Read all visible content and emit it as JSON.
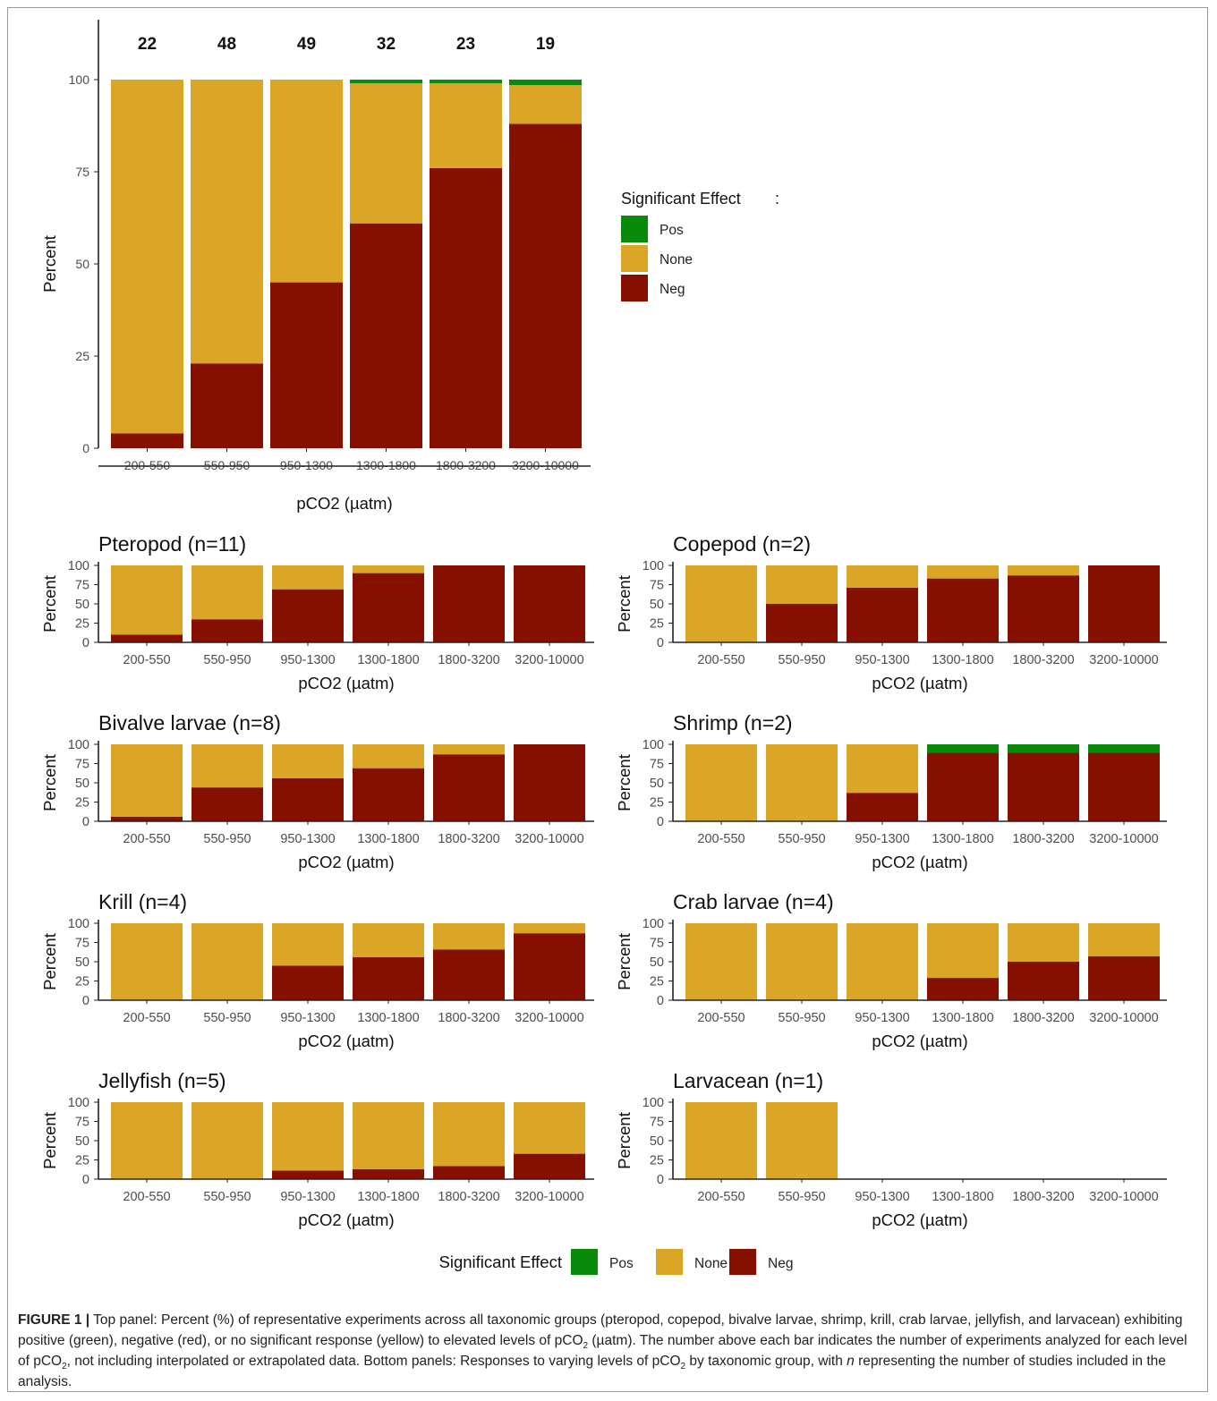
{
  "colors": {
    "Pos": "#0a8a0a",
    "None": "#dba526",
    "Neg": "#861000"
  },
  "legend": {
    "title": "Significant Effect",
    "title_suffix": ":",
    "items": [
      {
        "key": "Pos",
        "label": "Pos"
      },
      {
        "key": "None",
        "label": "None"
      },
      {
        "key": "Neg",
        "label": "Neg"
      }
    ]
  },
  "caption": {
    "label": "FIGURE 1 |",
    "part1": " Top panel: Percent (%) of representative experiments across all taxonomic groups (pteropod, copepod, bivalve larvae, shrimp, krill, crab larvae, jellyfish, and larvacean) exhibiting positive (green), negative (red), or no significant response (yellow) to elevated levels of pCO",
    "sub1": "2",
    "part2": " (µatm). The number above each bar indicates the number of experiments analyzed for each level of pCO",
    "sub2": "2",
    "part3": ", not including interpolated or extrapolated data. Bottom panels: Responses to varying levels of pCO",
    "sub3": "2",
    "part4": " by taxonomic group, with ",
    "italic_n": "n",
    "part5": " representing the number of studies included in the analysis."
  },
  "chart_data": [
    {
      "type": "bar",
      "stacked": true,
      "title": "",
      "xlabel": "pCO2 (µatm)",
      "ylabel": "Percent",
      "ylim": [
        0,
        100
      ],
      "yticks": [
        0,
        25,
        50,
        75,
        100
      ],
      "categories": [
        "200-550",
        "550-950",
        "950-1300",
        "1300-1800",
        "1800-3200",
        "3200-10000"
      ],
      "counts": [
        "22",
        "48",
        "49",
        "32",
        "23",
        "19"
      ],
      "series": [
        {
          "name": "Neg",
          "values": [
            4,
            23,
            45,
            61,
            76,
            88
          ]
        },
        {
          "name": "None",
          "values": [
            96,
            77,
            55,
            38,
            23,
            10.5
          ]
        },
        {
          "name": "Pos",
          "values": [
            0,
            0,
            0,
            1,
            1,
            1.5
          ]
        }
      ],
      "legend_position": "right"
    },
    {
      "type": "bar",
      "stacked": true,
      "title": "Pteropod (n=11)",
      "xlabel": "pCO2 (µatm)",
      "ylabel": "Percent",
      "ylim": [
        0,
        100
      ],
      "yticks": [
        0,
        25,
        50,
        75,
        100
      ],
      "categories": [
        "200-550",
        "550-950",
        "950-1300",
        "1300-1800",
        "1800-3200",
        "3200-10000"
      ],
      "series": [
        {
          "name": "Neg",
          "values": [
            10,
            30,
            69,
            90,
            100,
            100
          ]
        },
        {
          "name": "None",
          "values": [
            90,
            70,
            31,
            10,
            0,
            0
          ]
        },
        {
          "name": "Pos",
          "values": [
            0,
            0,
            0,
            0,
            0,
            0
          ]
        }
      ]
    },
    {
      "type": "bar",
      "stacked": true,
      "title": "Copepod (n=2)",
      "xlabel": "pCO2 (µatm)",
      "ylabel": "Percent",
      "ylim": [
        0,
        100
      ],
      "yticks": [
        0,
        25,
        50,
        75,
        100
      ],
      "categories": [
        "200-550",
        "550-950",
        "950-1300",
        "1300-1800",
        "1800-3200",
        "3200-10000"
      ],
      "series": [
        {
          "name": "Neg",
          "values": [
            0,
            50,
            71,
            83,
            87,
            100
          ]
        },
        {
          "name": "None",
          "values": [
            100,
            50,
            29,
            17,
            13,
            0
          ]
        },
        {
          "name": "Pos",
          "values": [
            0,
            0,
            0,
            0,
            0,
            0
          ]
        }
      ]
    },
    {
      "type": "bar",
      "stacked": true,
      "title": "Bivalve larvae (n=8)",
      "xlabel": "pCO2 (µatm)",
      "ylabel": "Percent",
      "ylim": [
        0,
        100
      ],
      "yticks": [
        0,
        25,
        50,
        75,
        100
      ],
      "categories": [
        "200-550",
        "550-950",
        "950-1300",
        "1300-1800",
        "1800-3200",
        "3200-10000"
      ],
      "series": [
        {
          "name": "Neg",
          "values": [
            6,
            44,
            56,
            69,
            87,
            100
          ]
        },
        {
          "name": "None",
          "values": [
            94,
            56,
            44,
            31,
            13,
            0
          ]
        },
        {
          "name": "Pos",
          "values": [
            0,
            0,
            0,
            0,
            0,
            0
          ]
        }
      ]
    },
    {
      "type": "bar",
      "stacked": true,
      "title": "Shrimp (n=2)",
      "xlabel": "pCO2 (µatm)",
      "ylabel": "Percent",
      "ylim": [
        0,
        100
      ],
      "yticks": [
        0,
        25,
        50,
        75,
        100
      ],
      "categories": [
        "200-550",
        "550-950",
        "950-1300",
        "1300-1800",
        "1800-3200",
        "3200-10000"
      ],
      "series": [
        {
          "name": "Neg",
          "values": [
            0,
            0,
            37,
            89,
            89,
            89
          ]
        },
        {
          "name": "None",
          "values": [
            100,
            100,
            63,
            0,
            0,
            0
          ]
        },
        {
          "name": "Pos",
          "values": [
            0,
            0,
            0,
            11,
            11,
            11
          ]
        }
      ]
    },
    {
      "type": "bar",
      "stacked": true,
      "title": "Krill (n=4)",
      "xlabel": "pCO2 (µatm)",
      "ylabel": "Percent",
      "ylim": [
        0,
        100
      ],
      "yticks": [
        0,
        25,
        50,
        75,
        100
      ],
      "categories": [
        "200-550",
        "550-950",
        "950-1300",
        "1300-1800",
        "1800-3200",
        "3200-10000"
      ],
      "series": [
        {
          "name": "Neg",
          "values": [
            0,
            0,
            45,
            56,
            66,
            87
          ]
        },
        {
          "name": "None",
          "values": [
            100,
            100,
            55,
            44,
            34,
            13
          ]
        },
        {
          "name": "Pos",
          "values": [
            0,
            0,
            0,
            0,
            0,
            0
          ]
        }
      ]
    },
    {
      "type": "bar",
      "stacked": true,
      "title": "Crab larvae (n=4)",
      "xlabel": "pCO2 (µatm)",
      "ylabel": "Percent",
      "ylim": [
        0,
        100
      ],
      "yticks": [
        0,
        25,
        50,
        75,
        100
      ],
      "categories": [
        "200-550",
        "550-950",
        "950-1300",
        "1300-1800",
        "1800-3200",
        "3200-10000"
      ],
      "series": [
        {
          "name": "Neg",
          "values": [
            0,
            0,
            0,
            29,
            50,
            57
          ]
        },
        {
          "name": "None",
          "values": [
            100,
            100,
            100,
            71,
            50,
            43
          ]
        },
        {
          "name": "Pos",
          "values": [
            0,
            0,
            0,
            0,
            0,
            0
          ]
        }
      ]
    },
    {
      "type": "bar",
      "stacked": true,
      "title": "Jellyfish (n=5)",
      "xlabel": "pCO2 (µatm)",
      "ylabel": "Percent",
      "ylim": [
        0,
        100
      ],
      "yticks": [
        0,
        25,
        50,
        75,
        100
      ],
      "categories": [
        "200-550",
        "550-950",
        "950-1300",
        "1300-1800",
        "1800-3200",
        "3200-10000"
      ],
      "series": [
        {
          "name": "Neg",
          "values": [
            0,
            0,
            11,
            13,
            17,
            33
          ]
        },
        {
          "name": "None",
          "values": [
            100,
            100,
            89,
            87,
            83,
            67
          ]
        },
        {
          "name": "Pos",
          "values": [
            0,
            0,
            0,
            0,
            0,
            0
          ]
        }
      ]
    },
    {
      "type": "bar",
      "stacked": true,
      "title": "Larvacean (n=1)",
      "xlabel": "pCO2 (µatm)",
      "ylabel": "Percent",
      "ylim": [
        0,
        100
      ],
      "yticks": [
        0,
        25,
        50,
        75,
        100
      ],
      "categories": [
        "200-550",
        "550-950",
        "950-1300",
        "1300-1800",
        "1800-3200",
        "3200-10000"
      ],
      "series": [
        {
          "name": "Neg",
          "values": [
            0,
            0,
            0,
            0,
            0,
            0
          ]
        },
        {
          "name": "None",
          "values": [
            100,
            100,
            0,
            0,
            0,
            0
          ]
        },
        {
          "name": "Pos",
          "values": [
            0,
            0,
            0,
            0,
            0,
            0
          ]
        }
      ]
    }
  ]
}
